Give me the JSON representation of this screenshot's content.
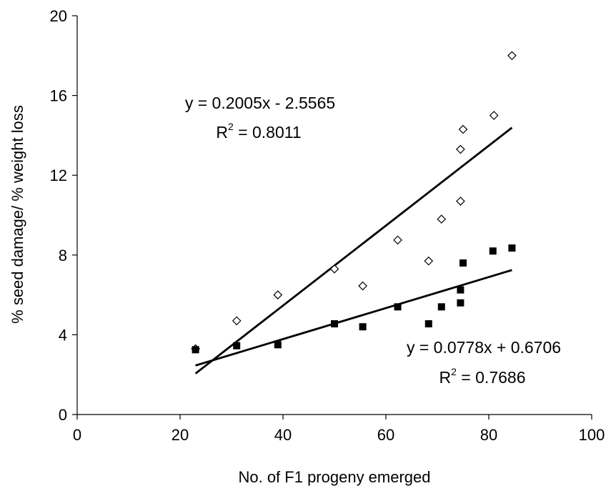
{
  "chart_data": {
    "type": "scatter",
    "title": "",
    "xlabel": "No. of F1 progeny emerged",
    "ylabel": "% seed damage/ % weight loss",
    "xlim": [
      0,
      100
    ],
    "ylim": [
      0,
      20
    ],
    "x_ticks": [
      0,
      20,
      40,
      60,
      80,
      100
    ],
    "y_ticks": [
      0,
      4,
      8,
      12,
      16,
      20
    ],
    "grid": false,
    "legend": "none",
    "series": [
      {
        "marker": "open-diamond",
        "color": "#000000",
        "points": [
          [
            23.0,
            3.3
          ],
          [
            31.0,
            4.7
          ],
          [
            39.0,
            6.0
          ],
          [
            50.0,
            7.3
          ],
          [
            55.5,
            6.45
          ],
          [
            62.3,
            8.75
          ],
          [
            68.3,
            7.7
          ],
          [
            70.8,
            9.8
          ],
          [
            74.5,
            10.7
          ],
          [
            74.5,
            13.3
          ],
          [
            75.0,
            14.3
          ],
          [
            81.0,
            15.0
          ],
          [
            84.5,
            18.0
          ]
        ],
        "trendline": {
          "slope": 0.2005,
          "intercept": -2.5565,
          "x_range": [
            23.0,
            84.5
          ]
        },
        "equation": "y = 0.2005x - 2.5565",
        "r2_label": "R",
        "r2_sup": "2",
        "r2_value": " = 0.8011"
      },
      {
        "marker": "filled-square",
        "color": "#000000",
        "points": [
          [
            23.0,
            3.25
          ],
          [
            31.0,
            3.45
          ],
          [
            39.0,
            3.5
          ],
          [
            50.0,
            4.55
          ],
          [
            55.5,
            4.4
          ],
          [
            62.3,
            5.4
          ],
          [
            68.3,
            4.55
          ],
          [
            70.8,
            5.4
          ],
          [
            74.5,
            5.6
          ],
          [
            74.5,
            6.25
          ],
          [
            75.0,
            7.6
          ],
          [
            80.8,
            8.2
          ],
          [
            84.5,
            8.35
          ]
        ],
        "trendline": {
          "slope": 0.0778,
          "intercept": 0.6706,
          "x_range": [
            23.0,
            84.5
          ]
        },
        "equation": "y = 0.0778x + 0.6706",
        "r2_label": "R",
        "r2_sup": "2",
        "r2_value": " = 0.7686"
      }
    ]
  }
}
